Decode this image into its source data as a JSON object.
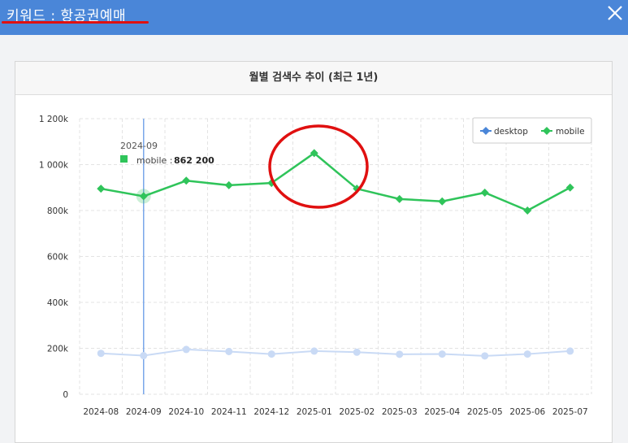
{
  "header": {
    "title": "키워드 : 항공권예매"
  },
  "card": {
    "title": "월별 검색수 추이 (최근 1년)"
  },
  "colors": {
    "desktop": "#4a86d8",
    "mobile": "#2fc45a",
    "header": "#4a86d8",
    "highlight": "#e01010"
  },
  "chart_data": {
    "type": "line",
    "title": "월별 검색수 추이 (최근 1년)",
    "categories": [
      "2024-08",
      "2024-09",
      "2024-10",
      "2024-11",
      "2024-12",
      "2025-01",
      "2025-02",
      "2025-03",
      "2025-04",
      "2025-05",
      "2025-06",
      "2025-07"
    ],
    "yticks": [
      "0",
      "200k",
      "400k",
      "600k",
      "800k",
      "1 000k",
      "1 200k"
    ],
    "ylim": [
      0,
      1200000
    ],
    "grid": true,
    "legend_position": "top-right",
    "series": [
      {
        "name": "desktop",
        "values": [
          178000,
          168000,
          195000,
          186000,
          175000,
          188000,
          183000,
          174000,
          175000,
          167000,
          175000,
          188000
        ]
      },
      {
        "name": "mobile",
        "values": [
          895000,
          862200,
          930000,
          910000,
          920000,
          1050000,
          895000,
          850000,
          840000,
          878000,
          800000,
          900000
        ]
      }
    ],
    "tooltip": {
      "category": "2024-09",
      "series": "mobile",
      "value_label": "862 200"
    }
  }
}
